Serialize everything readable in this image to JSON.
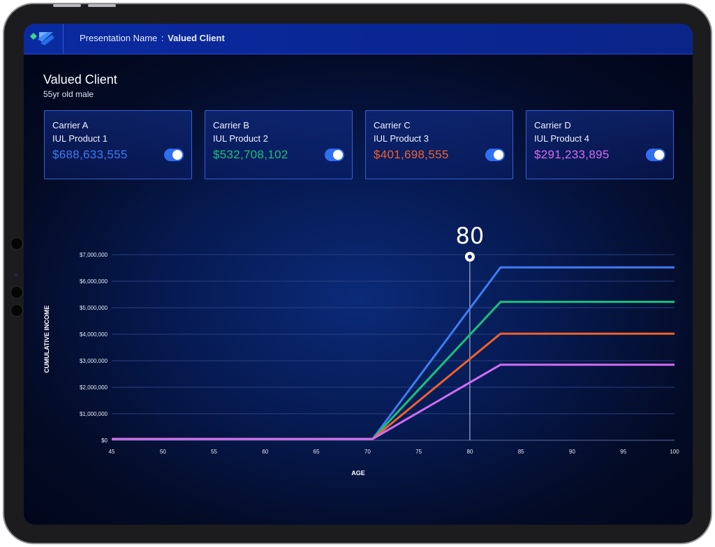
{
  "header": {
    "presentation_label": "Presentation Name",
    "separator": ":",
    "presentation_value": "Valued Client"
  },
  "client": {
    "name": "Valued Client",
    "description": "55yr old male"
  },
  "carriers": [
    {
      "carrier": "Carrier A",
      "product": "IUL Product 1",
      "value": "$688,633,555",
      "color": "#3f7cf2",
      "toggle_on": true
    },
    {
      "carrier": "Carrier B",
      "product": "IUL Product 2",
      "value": "$532,708,102",
      "color": "#19c27a",
      "toggle_on": true
    },
    {
      "carrier": "Carrier C",
      "product": "IUL Product 3",
      "value": "$401,698,555",
      "color": "#f0622a",
      "toggle_on": true
    },
    {
      "carrier": "Carrier D",
      "product": "IUL Product 4",
      "value": "$291,233,895",
      "color": "#d26cf2",
      "toggle_on": true
    }
  ],
  "chart_data": {
    "type": "line",
    "xlabel": "AGE",
    "ylabel": "CUMULATIVE INCOME",
    "xlim": [
      45,
      100
    ],
    "ylim": [
      0,
      7000000
    ],
    "x_ticks": [
      "45",
      "50",
      "55",
      "60",
      "65",
      "70",
      "75",
      "80",
      "85",
      "90",
      "95",
      "100"
    ],
    "y_ticks": [
      "$0",
      "$1,000,000",
      "$2,000,000",
      "$3,000,000",
      "$4,000,000",
      "$5,000,000",
      "$6,000,000",
      "$7,000,000"
    ],
    "grid": true,
    "marker_age": "80",
    "series": [
      {
        "color": "#3f7cf2",
        "x": [
          45,
          70.5,
          83,
          100
        ],
        "y": [
          50000,
          50000,
          6520000,
          6520000
        ]
      },
      {
        "color": "#19c27a",
        "x": [
          45,
          70.5,
          83,
          100
        ],
        "y": [
          50000,
          50000,
          5220000,
          5220000
        ]
      },
      {
        "color": "#f0622a",
        "x": [
          45,
          70.5,
          83,
          100
        ],
        "y": [
          50000,
          50000,
          4020000,
          4020000
        ]
      },
      {
        "color": "#d26cf2",
        "x": [
          45,
          70.5,
          83,
          100
        ],
        "y": [
          50000,
          50000,
          2850000,
          2850000
        ]
      }
    ]
  }
}
